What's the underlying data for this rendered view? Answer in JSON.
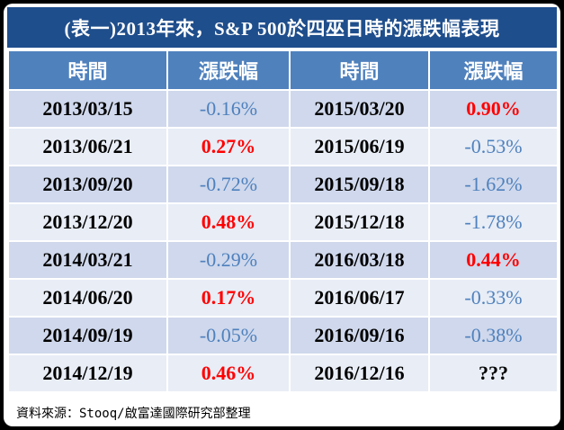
{
  "title": "(表一)2013年來，S&P 500於四巫日時的漲跌幅表現",
  "headers": [
    "時間",
    "漲跌幅",
    "時間",
    "漲跌幅"
  ],
  "rows": [
    {
      "date1": "2013/03/15",
      "chg1": "-0.16%",
      "date2": "2015/03/20",
      "chg2": "0.90%"
    },
    {
      "date1": "2013/06/21",
      "chg1": "0.27%",
      "date2": "2015/06/19",
      "chg2": "-0.53%"
    },
    {
      "date1": "2013/09/20",
      "chg1": "-0.72%",
      "date2": "2015/09/18",
      "chg2": "-1.62%"
    },
    {
      "date1": "2013/12/20",
      "chg1": "0.48%",
      "date2": "2015/12/18",
      "chg2": "-1.78%"
    },
    {
      "date1": "2014/03/21",
      "chg1": "-0.29%",
      "date2": "2016/03/18",
      "chg2": "0.44%"
    },
    {
      "date1": "2014/06/20",
      "chg1": "0.17%",
      "date2": "2016/06/17",
      "chg2": "-0.33%"
    },
    {
      "date1": "2014/09/19",
      "chg1": "-0.05%",
      "date2": "2016/09/16",
      "chg2": "-0.38%"
    },
    {
      "date1": "2014/12/19",
      "chg1": "0.46%",
      "date2": "2016/12/16",
      "chg2": "???"
    }
  ],
  "source": "資料來源：Stooq/啟富達國際研究部整理",
  "colors": {
    "header_bg": "#4f81bd",
    "title_bg": "#1f4e8c",
    "positive": "#ff0000",
    "negative": "#4f81bd"
  }
}
